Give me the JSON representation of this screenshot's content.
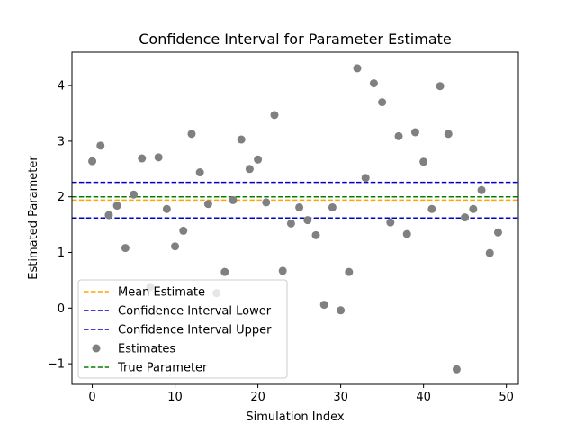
{
  "chart_data": {
    "type": "scatter",
    "title": "Confidence Interval for Parameter Estimate",
    "xlabel": "Simulation Index",
    "ylabel": "Estimated Parameter",
    "xlim": [
      -2.45,
      51.45
    ],
    "ylim": [
      -1.37,
      4.6
    ],
    "xticks": [
      0,
      10,
      20,
      30,
      40,
      50
    ],
    "yticks": [
      -1,
      0,
      1,
      2,
      3,
      4
    ],
    "grid": false,
    "legend_position": "lower-left",
    "estimates": {
      "name": "Estimates",
      "color": "#808080",
      "x": [
        0,
        1,
        2,
        3,
        4,
        5,
        6,
        7,
        8,
        9,
        10,
        11,
        12,
        13,
        14,
        15,
        16,
        17,
        18,
        19,
        20,
        21,
        22,
        23,
        24,
        25,
        26,
        27,
        28,
        29,
        30,
        31,
        32,
        33,
        34,
        35,
        36,
        37,
        38,
        39,
        40,
        41,
        42,
        43,
        44,
        45,
        46,
        47,
        48,
        49
      ],
      "y": [
        2.64,
        2.92,
        1.67,
        1.84,
        1.08,
        2.04,
        2.69,
        0.38,
        2.71,
        1.78,
        1.11,
        1.39,
        3.13,
        2.44,
        1.87,
        0.27,
        0.65,
        1.94,
        3.03,
        2.5,
        2.67,
        1.9,
        3.47,
        0.67,
        1.52,
        1.81,
        1.58,
        1.31,
        0.06,
        1.81,
        -0.04,
        0.65,
        4.31,
        2.34,
        4.04,
        3.7,
        1.54,
        3.09,
        1.33,
        3.16,
        2.63,
        1.78,
        3.99,
        3.13,
        -1.1,
        1.63,
        1.78,
        2.12,
        0.99,
        1.36
      ]
    },
    "lines": [
      {
        "name": "Mean Estimate",
        "y": 1.94,
        "color": "#ffa500"
      },
      {
        "name": "Confidence Interval Lower",
        "y": 1.62,
        "color": "#0000cc"
      },
      {
        "name": "Confidence Interval Upper",
        "y": 2.26,
        "color": "#0000cc"
      },
      {
        "name": "True Parameter",
        "y": 2.0,
        "color": "#008000"
      }
    ],
    "legend": [
      "Mean Estimate",
      "Confidence Interval Lower",
      "Confidence Interval Upper",
      "Estimates",
      "True Parameter"
    ]
  }
}
